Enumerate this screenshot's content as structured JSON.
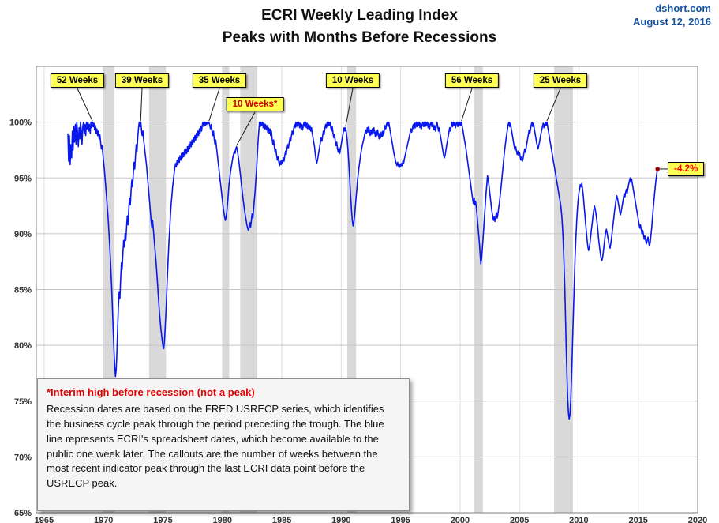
{
  "header": {
    "title_line1": "ECRI Weekly Leading Index",
    "title_line2": "Peaks with Months Before Recessions",
    "source": "dshort.com",
    "date": "August 12, 2016"
  },
  "note": {
    "title": "*Interim high before recession (not a peak)",
    "body": "Recession dates are based on the FRED USRECP series, which identifies the business cycle peak through the period preceding the trough. The blue line represents ECRI's spreadsheet dates, which become available to the public one week later. The callouts are the number of weeks between the most recent indicator peak through the last ECRI data point before the USRECP peak."
  },
  "chart_data": {
    "type": "line",
    "title": "ECRI Weekly Leading Index",
    "subtitle": "Peaks with Months Before Recessions",
    "xlabel": "",
    "ylabel": "",
    "xlim": [
      1964.34,
      2020
    ],
    "ylim": [
      65,
      105
    ],
    "x_ticks": [
      1965,
      1970,
      1975,
      1980,
      1985,
      1990,
      1995,
      2000,
      2005,
      2010,
      2015,
      2020
    ],
    "y_ticks": [
      65,
      70,
      75,
      80,
      85,
      90,
      95,
      100
    ],
    "grid": true,
    "legend": "none",
    "line_color": "#0818ee",
    "recession_color": "#d9d9d9",
    "callout_bg": "#ffff54",
    "recessions": [
      [
        1969.92,
        1970.92
      ],
      [
        1973.83,
        1975.25
      ],
      [
        1980.0,
        1980.58
      ],
      [
        1981.5,
        1982.92
      ],
      [
        1990.5,
        1991.25
      ],
      [
        2001.17,
        2001.92
      ],
      [
        2007.92,
        2009.5
      ]
    ],
    "callouts": [
      {
        "label": "52 Weeks",
        "text_color": "#000000",
        "box": [
          98,
          102
        ],
        "target": [
          1969.06,
          100
        ]
      },
      {
        "label": "39 Weeks",
        "text_color": "#000000",
        "box": [
          180,
          102
        ],
        "target": [
          1973.12,
          100
        ]
      },
      {
        "label": "35 Weeks",
        "text_color": "#000000",
        "box": [
          278,
          102
        ],
        "target": [
          1978.87,
          100
        ]
      },
      {
        "label": "10 Weeks*",
        "text_color": "#cc0000",
        "box": [
          323,
          132
        ],
        "target": [
          1981.19,
          97.8
        ]
      },
      {
        "label": "10 Weeks",
        "text_color": "#000000",
        "box": [
          447,
          102
        ],
        "target": [
          1990.37,
          99.5
        ]
      },
      {
        "label": "56 Weeks",
        "text_color": "#000000",
        "box": [
          598,
          102
        ],
        "target": [
          2000.12,
          100
        ]
      },
      {
        "label": "25 Weeks",
        "text_color": "#000000",
        "box": [
          710,
          102
        ],
        "target": [
          2007.31,
          100
        ]
      }
    ],
    "end_point": {
      "year": 2016.625,
      "value": 95.8,
      "label": "-4.2%",
      "label_color": "#ff0000",
      "dot_color": "#a00000"
    },
    "series": [
      {
        "name": "ECRI Weekly Leading Index (% of previous peak)",
        "x_start": 1967,
        "x_step": 0.0625,
        "values": [
          99.0,
          96.5,
          98.8,
          96.2,
          98.0,
          96.8,
          99.2,
          97.5,
          99.6,
          98.2,
          99.8,
          98.0,
          100,
          99.0,
          97.8,
          99.5,
          98.5,
          100,
          99.2,
          98.0,
          99.6,
          100,
          99.0,
          99.8,
          98.8,
          100,
          99.4,
          100,
          99.2,
          99.8,
          99.0,
          100,
          99.5,
          100,
          99.6,
          99.9,
          99.3,
          99.7,
          99.0,
          99.4,
          98.8,
          99.2,
          98.5,
          98.9,
          98.2,
          97.6,
          97.9,
          97.2,
          96.5,
          95.8,
          95.0,
          94.2,
          93.3,
          92.4,
          91.5,
          90.4,
          89.3,
          88.0,
          86.6,
          85.0,
          83.2,
          81.4,
          79.6,
          78.2,
          77.2,
          77.8,
          79.5,
          81.6,
          83.4,
          84.8,
          84.2,
          86.0,
          87.4,
          86.8,
          88.2,
          89.4,
          88.8,
          90.0,
          89.4,
          90.6,
          91.6,
          90.8,
          92.2,
          93.2,
          92.6,
          93.8,
          94.8,
          94.2,
          95.4,
          96.4,
          95.8,
          97.0,
          98.0,
          97.4,
          98.6,
          99.4,
          100,
          99.6,
          100,
          99.4,
          98.8,
          99.2,
          98.4,
          97.8,
          97.2,
          96.6,
          96.0,
          95.2,
          94.4,
          93.6,
          92.8,
          92.0,
          91.2,
          90.6,
          91.2,
          90.4,
          89.6,
          88.8,
          88.0,
          87.2,
          86.2,
          85.2,
          84.2,
          83.2,
          82.4,
          81.6,
          81.0,
          80.4,
          79.9,
          79.7,
          80.4,
          81.6,
          83.0,
          84.6,
          86.2,
          87.8,
          89.2,
          90.4,
          91.6,
          92.6,
          93.4,
          94.2,
          94.8,
          95.4,
          95.9,
          96.3,
          96.0,
          96.6,
          96.2,
          96.8,
          96.4,
          97.0,
          96.6,
          97.2,
          96.8,
          97.3,
          96.9,
          97.5,
          97.1,
          97.6,
          97.2,
          97.8,
          97.4,
          98.0,
          97.6,
          98.2,
          97.8,
          98.4,
          98.0,
          98.6,
          98.2,
          98.8,
          98.4,
          99.0,
          98.6,
          99.2,
          98.8,
          99.4,
          99.0,
          99.6,
          99.2,
          99.8,
          100,
          99.6,
          100,
          99.7,
          100,
          99.8,
          100,
          99.9,
          100,
          99.7,
          99.4,
          99.8,
          99.2,
          98.8,
          99.2,
          98.5,
          98.0,
          98.4,
          97.8,
          97.2,
          96.6,
          96.0,
          95.4,
          94.8,
          94.2,
          93.6,
          93.0,
          92.4,
          91.9,
          91.5,
          91.2,
          91.5,
          92.0,
          92.8,
          93.6,
          94.4,
          95.0,
          95.6,
          96.0,
          96.4,
          96.8,
          97.1,
          97.4,
          97.2,
          97.6,
          97.8,
          97.5,
          97.1,
          96.6,
          96.0,
          95.4,
          94.8,
          94.2,
          93.6,
          93.0,
          92.5,
          92.0,
          91.6,
          91.2,
          90.8,
          90.5,
          90.3,
          90.6,
          91.0,
          90.6,
          91.2,
          91.8,
          91.4,
          92.2,
          93.0,
          93.8,
          94.8,
          95.8,
          97.0,
          98.2,
          99.2,
          100,
          99.6,
          100,
          99.7,
          100,
          99.5,
          99.9,
          99.4,
          99.8,
          99.3,
          99.7,
          99.1,
          99.5,
          99.0,
          99.4,
          98.8,
          99.2,
          98.5,
          98.0,
          98.4,
          97.8,
          97.3,
          97.6,
          97.0,
          96.6,
          96.9,
          96.4,
          96.1,
          96.5,
          96.2,
          96.6,
          96.3,
          96.8,
          96.5,
          97.0,
          97.4,
          97.1,
          97.6,
          98.0,
          97.7,
          98.2,
          98.6,
          98.3,
          98.8,
          99.2,
          98.9,
          99.4,
          99.8,
          99.5,
          100,
          99.6,
          100,
          99.7,
          100,
          99.5,
          99.9,
          99.4,
          99.8,
          99.3,
          99.7,
          100,
          99.6,
          100,
          99.5,
          99.9,
          99.4,
          99.8,
          99.3,
          99.7,
          99.2,
          99.5,
          99.0,
          98.6,
          98.2,
          97.8,
          97.2,
          96.7,
          96.3,
          96.6,
          97.0,
          97.4,
          97.8,
          98.2,
          98.6,
          98.3,
          98.8,
          99.2,
          98.9,
          99.4,
          99.8,
          99.5,
          100,
          99.6,
          100,
          99.7,
          100,
          99.5,
          99.2,
          99.6,
          99.0,
          98.6,
          98.9,
          98.3,
          97.9,
          98.2,
          97.6,
          97.3,
          97.7,
          97.2,
          97.6,
          98.0,
          98.4,
          98.8,
          99.2,
          99.5,
          99.2,
          99.5,
          99.0,
          98.4,
          97.6,
          96.6,
          95.4,
          94.2,
          93.0,
          92.0,
          91.2,
          90.7,
          91.0,
          91.6,
          92.4,
          93.2,
          94.0,
          94.8,
          95.4,
          96.0,
          96.5,
          97.0,
          97.4,
          97.8,
          98.1,
          98.4,
          98.7,
          99.0,
          99.3,
          99.0,
          99.5,
          99.1,
          99.6,
          99.2,
          98.8,
          99.3,
          98.9,
          99.4,
          99.0,
          99.5,
          99.1,
          98.7,
          99.2,
          98.8,
          99.3,
          98.9,
          98.5,
          99.0,
          98.6,
          99.1,
          98.7,
          99.2,
          98.8,
          99.3,
          99.7,
          99.4,
          99.8,
          100,
          99.6,
          100,
          99.6,
          99.2,
          98.8,
          98.4,
          98.0,
          97.6,
          97.2,
          96.9,
          96.6,
          96.3,
          96.1,
          96.4,
          96.1,
          95.9,
          96.2,
          96.0,
          96.3,
          96.1,
          96.5,
          96.3,
          96.7,
          97.0,
          97.3,
          97.6,
          97.9,
          98.2,
          98.5,
          98.8,
          99.1,
          99.4,
          99.1,
          99.5,
          99.8,
          99.4,
          99.9,
          99.5,
          100,
          99.6,
          100,
          99.7,
          100,
          99.5,
          99.9,
          99.4,
          99.8,
          100,
          99.6,
          100,
          99.6,
          100,
          99.7,
          100,
          99.5,
          99.9,
          99.4,
          99.8,
          100,
          99.6,
          100,
          99.7,
          99.3,
          99.7,
          99.2,
          99.6,
          100,
          99.6,
          99.2,
          99.5,
          99.0,
          98.6,
          98.2,
          97.8,
          97.4,
          97.0,
          96.8,
          97.1,
          97.5,
          97.9,
          98.3,
          98.7,
          99.1,
          99.5,
          99.2,
          99.6,
          100,
          99.6,
          100,
          99.7,
          100,
          99.5,
          99.9,
          100,
          99.6,
          100,
          99.7,
          100,
          99.7,
          100,
          99.6,
          99.2,
          98.8,
          98.4,
          98.0,
          97.6,
          97.1,
          96.6,
          96.1,
          95.6,
          95.1,
          94.6,
          94.1,
          93.6,
          93.1,
          92.7,
          93.2,
          92.6,
          92.9,
          92.3,
          91.6,
          90.8,
          90.0,
          89.2,
          88.2,
          87.3,
          87.8,
          88.6,
          89.6,
          90.6,
          91.6,
          92.6,
          93.6,
          94.4,
          95.2,
          94.8,
          94.3,
          93.7,
          93.1,
          92.5,
          92.0,
          91.6,
          91.2,
          91.5,
          91.1,
          91.5,
          91.9,
          91.4,
          91.8,
          92.3,
          92.8,
          93.4,
          94.0,
          94.7,
          95.4,
          96.1,
          96.8,
          97.4,
          98.0,
          98.5,
          99.0,
          99.4,
          99.8,
          100,
          99.6,
          99.9,
          99.4,
          99.0,
          98.6,
          98.2,
          97.8,
          97.5,
          97.8,
          97.4,
          97.1,
          97.4,
          97.0,
          97.3,
          96.9,
          96.6,
          96.9,
          96.5,
          96.8,
          97.2,
          97.6,
          97.3,
          97.7,
          98.1,
          98.5,
          98.9,
          99.3,
          99.0,
          99.4,
          99.8,
          100,
          99.6,
          99.9,
          99.4,
          99.0,
          98.6,
          98.2,
          97.9,
          97.6,
          97.9,
          98.2,
          98.6,
          99.0,
          99.3,
          99.6,
          99.9,
          99.5,
          99.8,
          100,
          99.7,
          100,
          99.6,
          99.2,
          98.8,
          98.4,
          98.0,
          97.6,
          97.2,
          96.8,
          96.4,
          96.0,
          95.6,
          95.2,
          94.8,
          94.4,
          94.0,
          93.6,
          93.2,
          92.8,
          92.3,
          91.6,
          90.6,
          89.2,
          87.4,
          85.2,
          82.6,
          79.8,
          77.2,
          75.2,
          73.9,
          73.4,
          73.8,
          75.0,
          76.8,
          79.0,
          81.4,
          83.8,
          86.0,
          88.0,
          89.6,
          91.0,
          92.2,
          93.0,
          93.6,
          94.0,
          94.4,
          94.2,
          94.5,
          94.0,
          93.4,
          92.6,
          91.8,
          91.0,
          90.2,
          89.5,
          88.9,
          88.5,
          88.7,
          89.2,
          89.8,
          90.4,
          91.0,
          91.6,
          92.1,
          92.5,
          92.2,
          91.8,
          91.3,
          90.7,
          90.0,
          89.3,
          88.7,
          88.2,
          87.8,
          87.6,
          87.9,
          88.4,
          89.0,
          89.6,
          90.1,
          90.4,
          90.1,
          89.7,
          89.3,
          88.9,
          88.7,
          89.1,
          89.6,
          90.2,
          90.8,
          91.4,
          92.0,
          92.5,
          93.0,
          93.4,
          93.2,
          92.8,
          92.4,
          92.0,
          91.7,
          92.0,
          92.4,
          92.8,
          93.2,
          93.6,
          93.3,
          93.7,
          94.0,
          93.6,
          94.0,
          94.4,
          94.7,
          95.0,
          94.6,
          94.9,
          94.5,
          94.1,
          93.7,
          93.3,
          92.9,
          92.5,
          92.1,
          91.7,
          91.3,
          90.9,
          90.5,
          90.8,
          90.4,
          90.0,
          90.3,
          89.9,
          89.5,
          89.8,
          89.4,
          89.1,
          89.4,
          89.7,
          89.3,
          88.9,
          89.2,
          89.8,
          90.5,
          91.3,
          92.1,
          92.9,
          93.6,
          94.3,
          94.9,
          95.4,
          95.8
        ]
      }
    ]
  }
}
